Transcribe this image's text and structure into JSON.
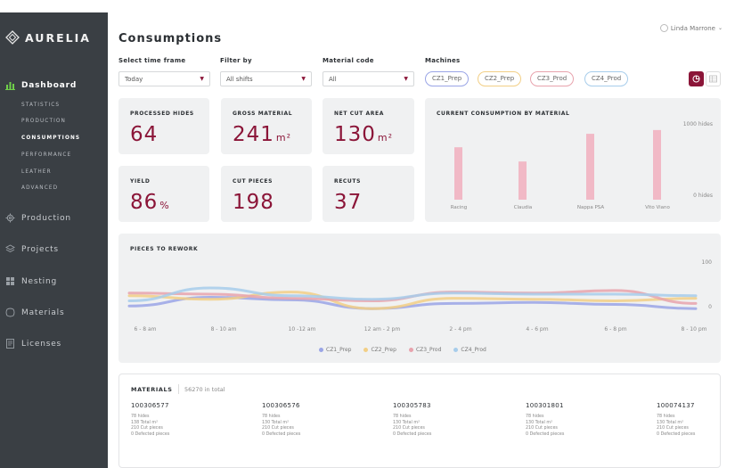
{
  "app": {
    "name": "AURELIA"
  },
  "user": {
    "name": "Linda Marrone"
  },
  "page": {
    "title": "Consumptions"
  },
  "nav": {
    "dashboard": "Dashboard",
    "sub": [
      "STATISTICS",
      "PRODUCTION",
      "CONSUMPTIONS",
      "PERFORMANCE",
      "LEATHER",
      "ADVANCED"
    ],
    "production": "Production",
    "projects": "Projects",
    "nesting": "Nesting",
    "materials": "Materials",
    "licenses": "Licenses"
  },
  "filters": {
    "time_label": "Select time frame",
    "time_value": "Today",
    "filter_label": "Filter by",
    "filter_value": "All shifts",
    "material_label": "Material code",
    "material_value": "All",
    "machines_label": "Machines",
    "machines": [
      "CZ1_Prep",
      "CZ2_Prep",
      "CZ3_Prod",
      "CZ4_Prod"
    ]
  },
  "colors": {
    "accent": "#8b1538",
    "cz1": "#9aa5e6",
    "cz2": "#f2cf86",
    "cz3": "#e8a3ad",
    "cz4": "#a7cdeb",
    "bar": "#f1b9c6"
  },
  "kpis": {
    "processed_hides": {
      "label": "PROCESSED HIDES",
      "value": "64",
      "unit": ""
    },
    "gross_material": {
      "label": "GROSS MATERIAL",
      "value": "241",
      "unit": "m²"
    },
    "net_cut_area": {
      "label": "NET CUT AREA",
      "value": "130",
      "unit": "m²"
    },
    "yield": {
      "label": "YIELD",
      "value": "86",
      "unit": "%"
    },
    "cut_pieces": {
      "label": "CUT PIECES",
      "value": "198",
      "unit": ""
    },
    "recuts": {
      "label": "RECUTS",
      "value": "37",
      "unit": ""
    }
  },
  "consumption_chart": {
    "title": "CURRENT CONSUMPTION BY MATERIAL",
    "y_top_label": "1000 hides",
    "y_bottom_label": "0 hides"
  },
  "rework_chart": {
    "title": "PIECES TO REWORK",
    "y_top_label": "100",
    "y_bottom_label": "0"
  },
  "chart_data": [
    {
      "type": "bar",
      "title": "CURRENT CONSUMPTION BY MATERIAL",
      "categories": [
        "Racing",
        "Claudia",
        "Nappa PSA",
        "Vito Viano"
      ],
      "values": [
        700,
        510,
        880,
        930
      ],
      "ylim": [
        0,
        1000
      ]
    },
    {
      "type": "line",
      "title": "PIECES TO REWORK",
      "categories": [
        "6 - 8 am",
        "8 - 10 am",
        "10 -12 am",
        "12 am - 2 pm",
        "2 - 4 pm",
        "4 - 6 pm",
        "6 - 8 pm",
        "8 - 10 pm"
      ],
      "ylim": [
        0,
        100
      ],
      "series": [
        {
          "name": "CZ1_Prep",
          "values": [
            15,
            32,
            27,
            10,
            20,
            22,
            18,
            10
          ]
        },
        {
          "name": "CZ2_Prep",
          "values": [
            35,
            28,
            42,
            10,
            30,
            28,
            25,
            30
          ]
        },
        {
          "name": "CZ3_Prod",
          "values": [
            40,
            38,
            30,
            25,
            42,
            40,
            45,
            20
          ]
        },
        {
          "name": "CZ4_Prod",
          "values": [
            25,
            50,
            35,
            28,
            40,
            38,
            38,
            35
          ]
        }
      ]
    }
  ],
  "materials": {
    "title": "MATERIALS",
    "total": "56270 in total",
    "items": [
      {
        "code": "100306577",
        "hides": "78 hides",
        "total": "138 Total m²",
        "cut": "210 Cut pieces",
        "defected": "0 Defected pieces"
      },
      {
        "code": "100306576",
        "hides": "78 hides",
        "total": "130 Total m²",
        "cut": "210 Cut pieces",
        "defected": "0 Defected pieces"
      },
      {
        "code": "100305783",
        "hides": "78 hides",
        "total": "130 Total m²",
        "cut": "210 Cut pieces",
        "defected": "0 Defected pieces"
      },
      {
        "code": "100301801",
        "hides": "78 hides",
        "total": "130 Total m²",
        "cut": "210 Cut pieces",
        "defected": "0 Defected pieces"
      },
      {
        "code": "100074137",
        "hides": "78 hides",
        "total": "130 Total m²",
        "cut": "210 Cut pieces",
        "defected": "0 Defected pieces"
      }
    ]
  }
}
